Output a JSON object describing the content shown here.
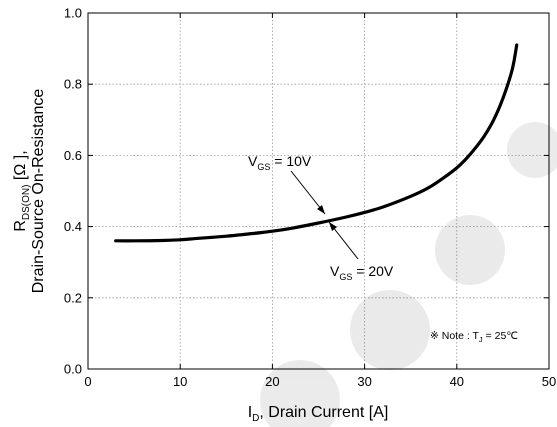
{
  "chart_data": {
    "type": "line",
    "xlabel_main": "I",
    "xlabel_sub": "D",
    "xlabel_rest": ", Drain Current [A]",
    "ylabel_line1_main": "R",
    "ylabel_line1_sub": "DS(ON)",
    "ylabel_line1_rest": " [Ω ],",
    "ylabel_line2": "Drain-Source On-Resistance",
    "xlim": [
      0,
      50
    ],
    "ylim": [
      0.0,
      1.0
    ],
    "xticks": [
      0,
      10,
      20,
      30,
      40,
      50
    ],
    "xtick_labels": [
      "0",
      "10",
      "20",
      "30",
      "40",
      "50"
    ],
    "yticks": [
      0.0,
      0.2,
      0.4,
      0.6,
      0.8,
      1.0
    ],
    "ytick_labels": [
      "0.0",
      "0.2",
      "0.4",
      "0.6",
      "0.8",
      "1.0"
    ],
    "grid": true,
    "series": [
      {
        "x": [
          3.0,
          5,
          8,
          10,
          12,
          15,
          18,
          20,
          22,
          25,
          28,
          30,
          32,
          35,
          37,
          39,
          40,
          41,
          42,
          43,
          44,
          45,
          46,
          46.5
        ],
        "y": [
          0.36,
          0.36,
          0.361,
          0.363,
          0.367,
          0.373,
          0.381,
          0.387,
          0.395,
          0.41,
          0.427,
          0.44,
          0.455,
          0.485,
          0.51,
          0.545,
          0.565,
          0.59,
          0.62,
          0.655,
          0.7,
          0.76,
          0.84,
          0.91
        ]
      }
    ],
    "annotations": [
      {
        "id": "vgs10",
        "main": "V",
        "sub": "GS",
        "rest": " = 10V"
      },
      {
        "id": "vgs20",
        "main": "V",
        "sub": "GS",
        "rest": " = 20V"
      }
    ],
    "note": {
      "symbol": "※",
      "text_before": " Note : T",
      "sub": "J",
      "text_after": " = 25℃"
    }
  }
}
